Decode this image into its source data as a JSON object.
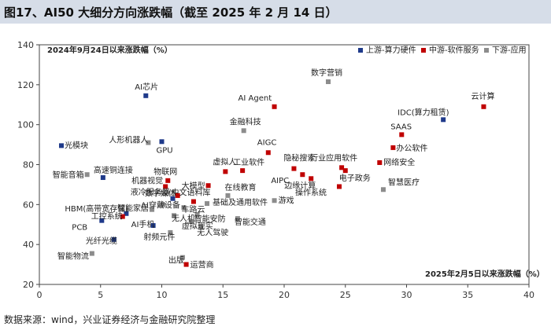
{
  "title": "图17、AI50 大细分方向涨跌幅（截至 2025 年 2 月 14 日）",
  "source": "数据来源：wind，兴业证券经济与金融研究院整理",
  "chart_data": {
    "type": "scatter",
    "xlabel": "2025年2月5日以来涨跌幅（%）",
    "ylabel": "2024年9月24日以来涨跌幅（%）",
    "xlim": [
      0,
      40
    ],
    "ylim": [
      20,
      140
    ],
    "xticks": [
      "0",
      "5",
      "10",
      "15",
      "20",
      "25",
      "30",
      "35",
      "40"
    ],
    "yticks": [
      "20",
      "40",
      "60",
      "80",
      "100",
      "120",
      "140"
    ],
    "series": [
      {
        "name": "上游-算力硬件",
        "color": "#1f3a8a",
        "points": [
          {
            "label": "AI芯片",
            "x": 8.7,
            "y": 114.5
          },
          {
            "label": "光模块",
            "x": 1.8,
            "y": 89.5
          },
          {
            "label": "GPU",
            "x": 10.0,
            "y": 91.5
          },
          {
            "label": "高速铜连接",
            "x": 5.2,
            "y": 73.5
          },
          {
            "label": "IDC(算力租赁)",
            "x": 33.0,
            "y": 102.5
          },
          {
            "label": "中文语料库",
            "x": 10.9,
            "y": 63.0
          },
          {
            "label": "HBM(高带宽存储)",
            "x": 7.1,
            "y": 55.5
          },
          {
            "label": "PCB",
            "x": 5.1,
            "y": 52.0
          },
          {
            "label": "AI手机",
            "x": 9.3,
            "y": 49.5
          },
          {
            "label": "光纤光缆",
            "x": 6.1,
            "y": 42.5
          }
        ]
      },
      {
        "name": "中游-软件服务",
        "color": "#c00000",
        "points": [
          {
            "label": "AI Agent",
            "x": 19.2,
            "y": 109.0
          },
          {
            "label": "云计算",
            "x": 36.3,
            "y": 109.0
          },
          {
            "label": "SAAS",
            "x": 29.6,
            "y": 95.0
          },
          {
            "label": "办公软件",
            "x": 28.9,
            "y": 88.5
          },
          {
            "label": "AIGC",
            "x": 18.7,
            "y": 86.0
          },
          {
            "label": "工业软件",
            "x": 16.6,
            "y": 77.0
          },
          {
            "label": "虚拟人",
            "x": 15.2,
            "y": 76.5
          },
          {
            "label": "隐秘搜索",
            "x": 20.8,
            "y": 78.0
          },
          {
            "label": "网络安全",
            "x": 27.8,
            "y": 81.0
          },
          {
            "label": "行业应用软件",
            "x": 24.7,
            "y": 78.5
          },
          {
            "label": "AIPC",
            "x": 21.5,
            "y": 75.0
          },
          {
            "label": "电子政务",
            "x": 25.0,
            "y": 77.0
          },
          {
            "label": "边缘计算",
            "x": 22.2,
            "y": 73.0
          },
          {
            "label": "物联网",
            "x": 10.5,
            "y": 72.0
          },
          {
            "label": "大模型",
            "x": 13.8,
            "y": 69.5
          },
          {
            "label": "机器视觉",
            "x": 10.3,
            "y": 69.0
          },
          {
            "label": "操作系统",
            "x": 24.5,
            "y": 69.0
          },
          {
            "label": "液冷服务器",
            "x": 11.3,
            "y": 64.5
          },
          {
            "label": "数字媒体",
            "x": 12.6,
            "y": 61.5
          },
          {
            "label": "工控系统",
            "x": 6.8,
            "y": 54.0
          },
          {
            "label": "运营商",
            "x": 12.0,
            "y": 30.0
          }
        ]
      },
      {
        "name": "下游-应用",
        "color": "#8c8c8c",
        "points": [
          {
            "label": "数字营销",
            "x": 23.6,
            "y": 121.5
          },
          {
            "label": "金融科技",
            "x": 16.7,
            "y": 97.0
          },
          {
            "label": "人形机器人",
            "x": 8.9,
            "y": 91.0
          },
          {
            "label": "智能音箱",
            "x": 3.9,
            "y": 75.0
          },
          {
            "label": "智慧医疗",
            "x": 28.1,
            "y": 67.5
          },
          {
            "label": "在线教育",
            "x": 15.4,
            "y": 64.5
          },
          {
            "label": "游戏",
            "x": 19.2,
            "y": 62.0
          },
          {
            "label": "AI穿戴设备",
            "x": 10.1,
            "y": 60.0
          },
          {
            "label": "基础及通用软件",
            "x": 13.7,
            "y": 60.5
          },
          {
            "label": "智能家居",
            "x": 9.2,
            "y": 57.5
          },
          {
            "label": "车路云",
            "x": 11.8,
            "y": 58.5
          },
          {
            "label": "智能安防",
            "x": 12.9,
            "y": 55.0
          },
          {
            "label": "无人机",
            "x": 11.0,
            "y": 54.5
          },
          {
            "label": "智能交通",
            "x": 16.2,
            "y": 53.0
          },
          {
            "label": "虚拟现实",
            "x": 12.4,
            "y": 51.5
          },
          {
            "label": "无人驾驶",
            "x": 13.2,
            "y": 49.0
          },
          {
            "label": "射频元件",
            "x": 10.7,
            "y": 46.0
          },
          {
            "label": "智能物流",
            "x": 4.3,
            "y": 35.5
          },
          {
            "label": "出版",
            "x": 11.7,
            "y": 33.5
          }
        ]
      }
    ]
  }
}
